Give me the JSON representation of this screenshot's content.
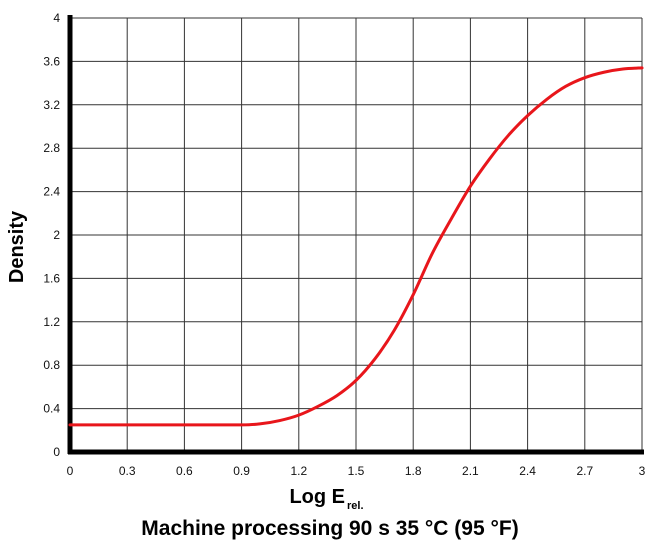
{
  "chart_data": {
    "type": "line",
    "title": "Machine processing 90 s 35 °C (95 °F)",
    "xlabel": "Log E",
    "xlabel_subscript": "rel.",
    "ylabel": "Density",
    "xlim": [
      0,
      3
    ],
    "ylim": [
      0,
      4
    ],
    "x_ticks": [
      "0",
      "0.3",
      "0.6",
      "0.9",
      "1.2",
      "1.5",
      "1.8",
      "2.1",
      "2.4",
      "2.7",
      "3"
    ],
    "y_ticks": [
      "0",
      "0.4",
      "0.8",
      "1.2",
      "1.6",
      "2",
      "2.4",
      "2.8",
      "3.2",
      "3.6",
      "4"
    ],
    "grid": true,
    "series": [
      {
        "color": "#e8161b",
        "x": [
          0,
          0.3,
          0.6,
          0.9,
          1.0,
          1.1,
          1.2,
          1.3,
          1.4,
          1.5,
          1.6,
          1.7,
          1.8,
          1.9,
          2.0,
          2.1,
          2.2,
          2.3,
          2.4,
          2.5,
          2.6,
          2.7,
          2.8,
          2.9,
          3.0
        ],
        "y": [
          0.25,
          0.25,
          0.25,
          0.25,
          0.26,
          0.29,
          0.34,
          0.42,
          0.52,
          0.66,
          0.86,
          1.12,
          1.45,
          1.83,
          2.15,
          2.45,
          2.7,
          2.92,
          3.1,
          3.25,
          3.37,
          3.45,
          3.5,
          3.53,
          3.54
        ]
      }
    ]
  }
}
